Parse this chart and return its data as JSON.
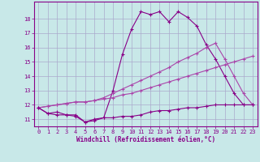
{
  "xlabel": "Windchill (Refroidissement éolien,°C)",
  "background_color": "#c8e8e8",
  "grid_color": "#aaaacc",
  "line_color": "#880088",
  "xlim": [
    -0.5,
    23.5
  ],
  "ylim": [
    10.5,
    19.2
  ],
  "xticks": [
    0,
    1,
    2,
    3,
    4,
    5,
    6,
    7,
    8,
    9,
    10,
    11,
    12,
    13,
    14,
    15,
    16,
    17,
    18,
    19,
    20,
    21,
    22,
    23
  ],
  "yticks": [
    11,
    12,
    13,
    14,
    15,
    16,
    17,
    18
  ],
  "series": [
    {
      "x": [
        0,
        1,
        2,
        3,
        4,
        5,
        6,
        7,
        8,
        9,
        10,
        11,
        12,
        13,
        14,
        15,
        16,
        17,
        18,
        19,
        20,
        21,
        22,
        23
      ],
      "y": [
        11.8,
        11.4,
        11.5,
        11.3,
        11.2,
        10.8,
        11.0,
        11.1,
        13.0,
        15.5,
        17.3,
        18.5,
        18.3,
        18.5,
        17.8,
        18.5,
        18.1,
        17.5,
        16.2,
        15.2,
        14.0,
        12.8,
        12.0,
        12.0
      ]
    },
    {
      "x": [
        0,
        1,
        2,
        3,
        4,
        5,
        6,
        7,
        8,
        9,
        10,
        11,
        12,
        13,
        14,
        15,
        16,
        17,
        18,
        19,
        20,
        21,
        22,
        23
      ],
      "y": [
        11.8,
        11.9,
        12.0,
        12.1,
        12.2,
        12.2,
        12.3,
        12.5,
        12.8,
        13.1,
        13.4,
        13.7,
        14.0,
        14.3,
        14.6,
        15.0,
        15.3,
        15.6,
        16.0,
        16.3,
        15.2,
        14.0,
        12.8,
        12.0
      ]
    },
    {
      "x": [
        0,
        1,
        2,
        3,
        4,
        5,
        6,
        7,
        8,
        9,
        10,
        11,
        12,
        13,
        14,
        15,
        16,
        17,
        18,
        19,
        20,
        21,
        22,
        23
      ],
      "y": [
        11.8,
        11.9,
        12.0,
        12.1,
        12.2,
        12.2,
        12.3,
        12.4,
        12.5,
        12.7,
        12.8,
        13.0,
        13.2,
        13.4,
        13.6,
        13.8,
        14.0,
        14.2,
        14.4,
        14.6,
        14.8,
        15.0,
        15.2,
        15.4
      ]
    },
    {
      "x": [
        0,
        1,
        2,
        3,
        4,
        5,
        6,
        7,
        8,
        9,
        10,
        11,
        12,
        13,
        14,
        15,
        16,
        17,
        18,
        19,
        20,
        21,
        22,
        23
      ],
      "y": [
        11.8,
        11.4,
        11.3,
        11.3,
        11.3,
        10.8,
        10.9,
        11.1,
        11.1,
        11.2,
        11.2,
        11.3,
        11.5,
        11.6,
        11.6,
        11.7,
        11.8,
        11.8,
        11.9,
        12.0,
        12.0,
        12.0,
        12.0,
        12.0
      ]
    }
  ]
}
